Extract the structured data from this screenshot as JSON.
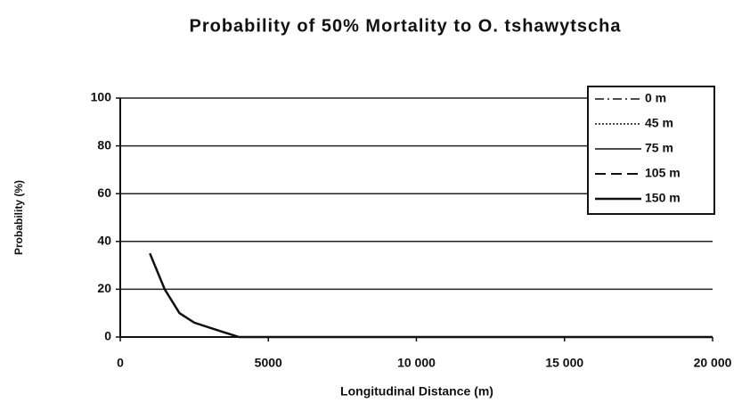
{
  "chart_data": {
    "type": "line",
    "title": "Probability of 50% Mortality to O. tshawytscha",
    "x_label": "Longitudinal Distance (m)",
    "y_label": "Probability (%)",
    "x": [
      1000,
      1500,
      2000,
      2500,
      3000,
      3500,
      4000,
      20000
    ],
    "series": [
      {
        "name": "0 m",
        "color": "#111111",
        "dash": "10 4 2 4",
        "width": 1.5,
        "values": [
          0,
          0,
          0,
          0,
          0,
          0,
          0,
          0
        ]
      },
      {
        "name": "45 m",
        "color": "#111111",
        "dash": "2 2",
        "width": 1.5,
        "values": [
          0,
          0,
          0,
          0,
          0,
          0,
          0,
          0
        ]
      },
      {
        "name": "75 m",
        "color": "#111111",
        "dash": "none",
        "width": 1.5,
        "values": [
          0,
          0,
          0,
          0,
          0,
          0,
          0,
          0
        ]
      },
      {
        "name": "105 m",
        "color": "#111111",
        "dash": "12 6",
        "width": 2,
        "values": [
          0,
          0,
          0,
          0,
          0,
          0,
          0,
          0
        ]
      },
      {
        "name": "150 m",
        "color": "#111111",
        "dash": "none",
        "width": 2.5,
        "values": [
          35,
          20,
          10,
          6,
          4,
          2,
          0,
          0
        ]
      }
    ],
    "xlim": [
      0,
      20000
    ],
    "xticks": [
      0,
      5000,
      {
        "value": 10000,
        "label": "10 000"
      },
      {
        "value": 15000,
        "label": "15 000"
      },
      {
        "value": 20000,
        "label": "20 000"
      }
    ],
    "ylim": [
      0,
      100
    ],
    "yticks": [
      0,
      20,
      40,
      60,
      80,
      100
    ],
    "grid": true,
    "legend": "top-right"
  }
}
